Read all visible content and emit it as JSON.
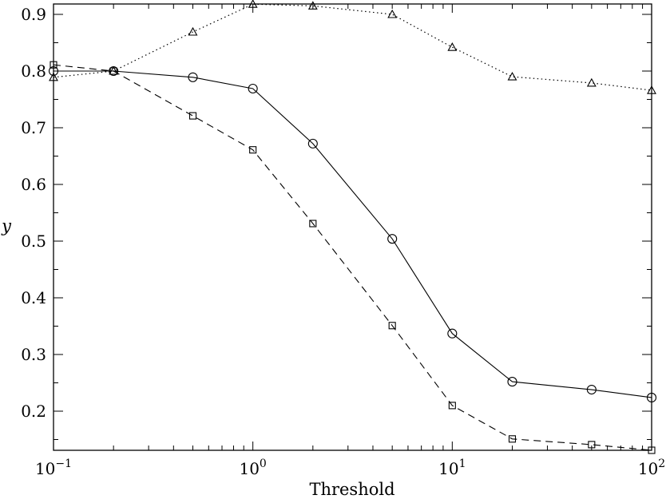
{
  "chart_data": {
    "type": "line",
    "title": "",
    "xlabel": "Threshold",
    "ylabel": "y",
    "xscale": "log",
    "xlim": [
      0.1,
      100
    ],
    "ylim": [
      0.131,
      0.918
    ],
    "grid": false,
    "legend": null,
    "x": [
      0.1,
      0.2,
      0.5,
      1,
      2,
      5,
      10,
      20,
      50,
      100
    ],
    "x_tick_labels": [
      {
        "value": 0.1,
        "base": "10",
        "exp": "−1"
      },
      {
        "value": 1,
        "base": "10",
        "exp": "0"
      },
      {
        "value": 10,
        "base": "10",
        "exp": "1"
      },
      {
        "value": 100,
        "base": "10",
        "exp": "2"
      }
    ],
    "y_ticks": [
      0.2,
      0.3,
      0.4,
      0.5,
      0.6,
      0.7,
      0.8,
      0.9
    ],
    "y_tick_labels": [
      "0.2",
      "0.3",
      "0.4",
      "0.5",
      "0.6",
      "0.7",
      "0.8",
      "0.9"
    ],
    "series": [
      {
        "name": "circles-solid",
        "marker": "circle",
        "linestyle": "solid",
        "color": "#000000",
        "values": [
          0.8,
          0.8,
          0.789,
          0.769,
          0.672,
          0.504,
          0.337,
          0.252,
          0.238,
          0.224
        ]
      },
      {
        "name": "squares-dashed",
        "marker": "square",
        "linestyle": "dashed",
        "color": "#000000",
        "values": [
          0.811,
          0.8,
          0.721,
          0.661,
          0.531,
          0.351,
          0.21,
          0.151,
          0.141,
          0.131
        ]
      },
      {
        "name": "triangles-dotted",
        "marker": "triangle",
        "linestyle": "dotted",
        "color": "#000000",
        "values": [
          0.789,
          0.8,
          0.869,
          0.918,
          0.915,
          0.9,
          0.842,
          0.79,
          0.779,
          0.766
        ]
      }
    ]
  }
}
